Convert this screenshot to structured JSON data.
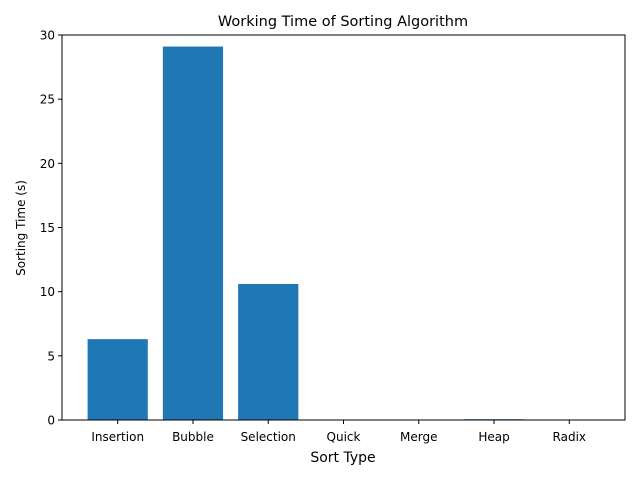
{
  "chart_data": {
    "type": "bar",
    "title": "Working Time of Sorting Algorithm",
    "xlabel": "Sort Type",
    "ylabel": "Sorting Time (s)",
    "categories": [
      "Insertion",
      "Bubble",
      "Selection",
      "Quick",
      "Merge",
      "Heap",
      "Radix"
    ],
    "values": [
      6.3,
      29.1,
      10.6,
      0.02,
      0.03,
      0.06,
      0.02
    ],
    "ylim": [
      0,
      30
    ],
    "yticks": [
      0,
      5,
      10,
      15,
      20,
      25,
      30
    ],
    "grid": false,
    "legend": "none",
    "bar_color": "#1f77b4"
  }
}
